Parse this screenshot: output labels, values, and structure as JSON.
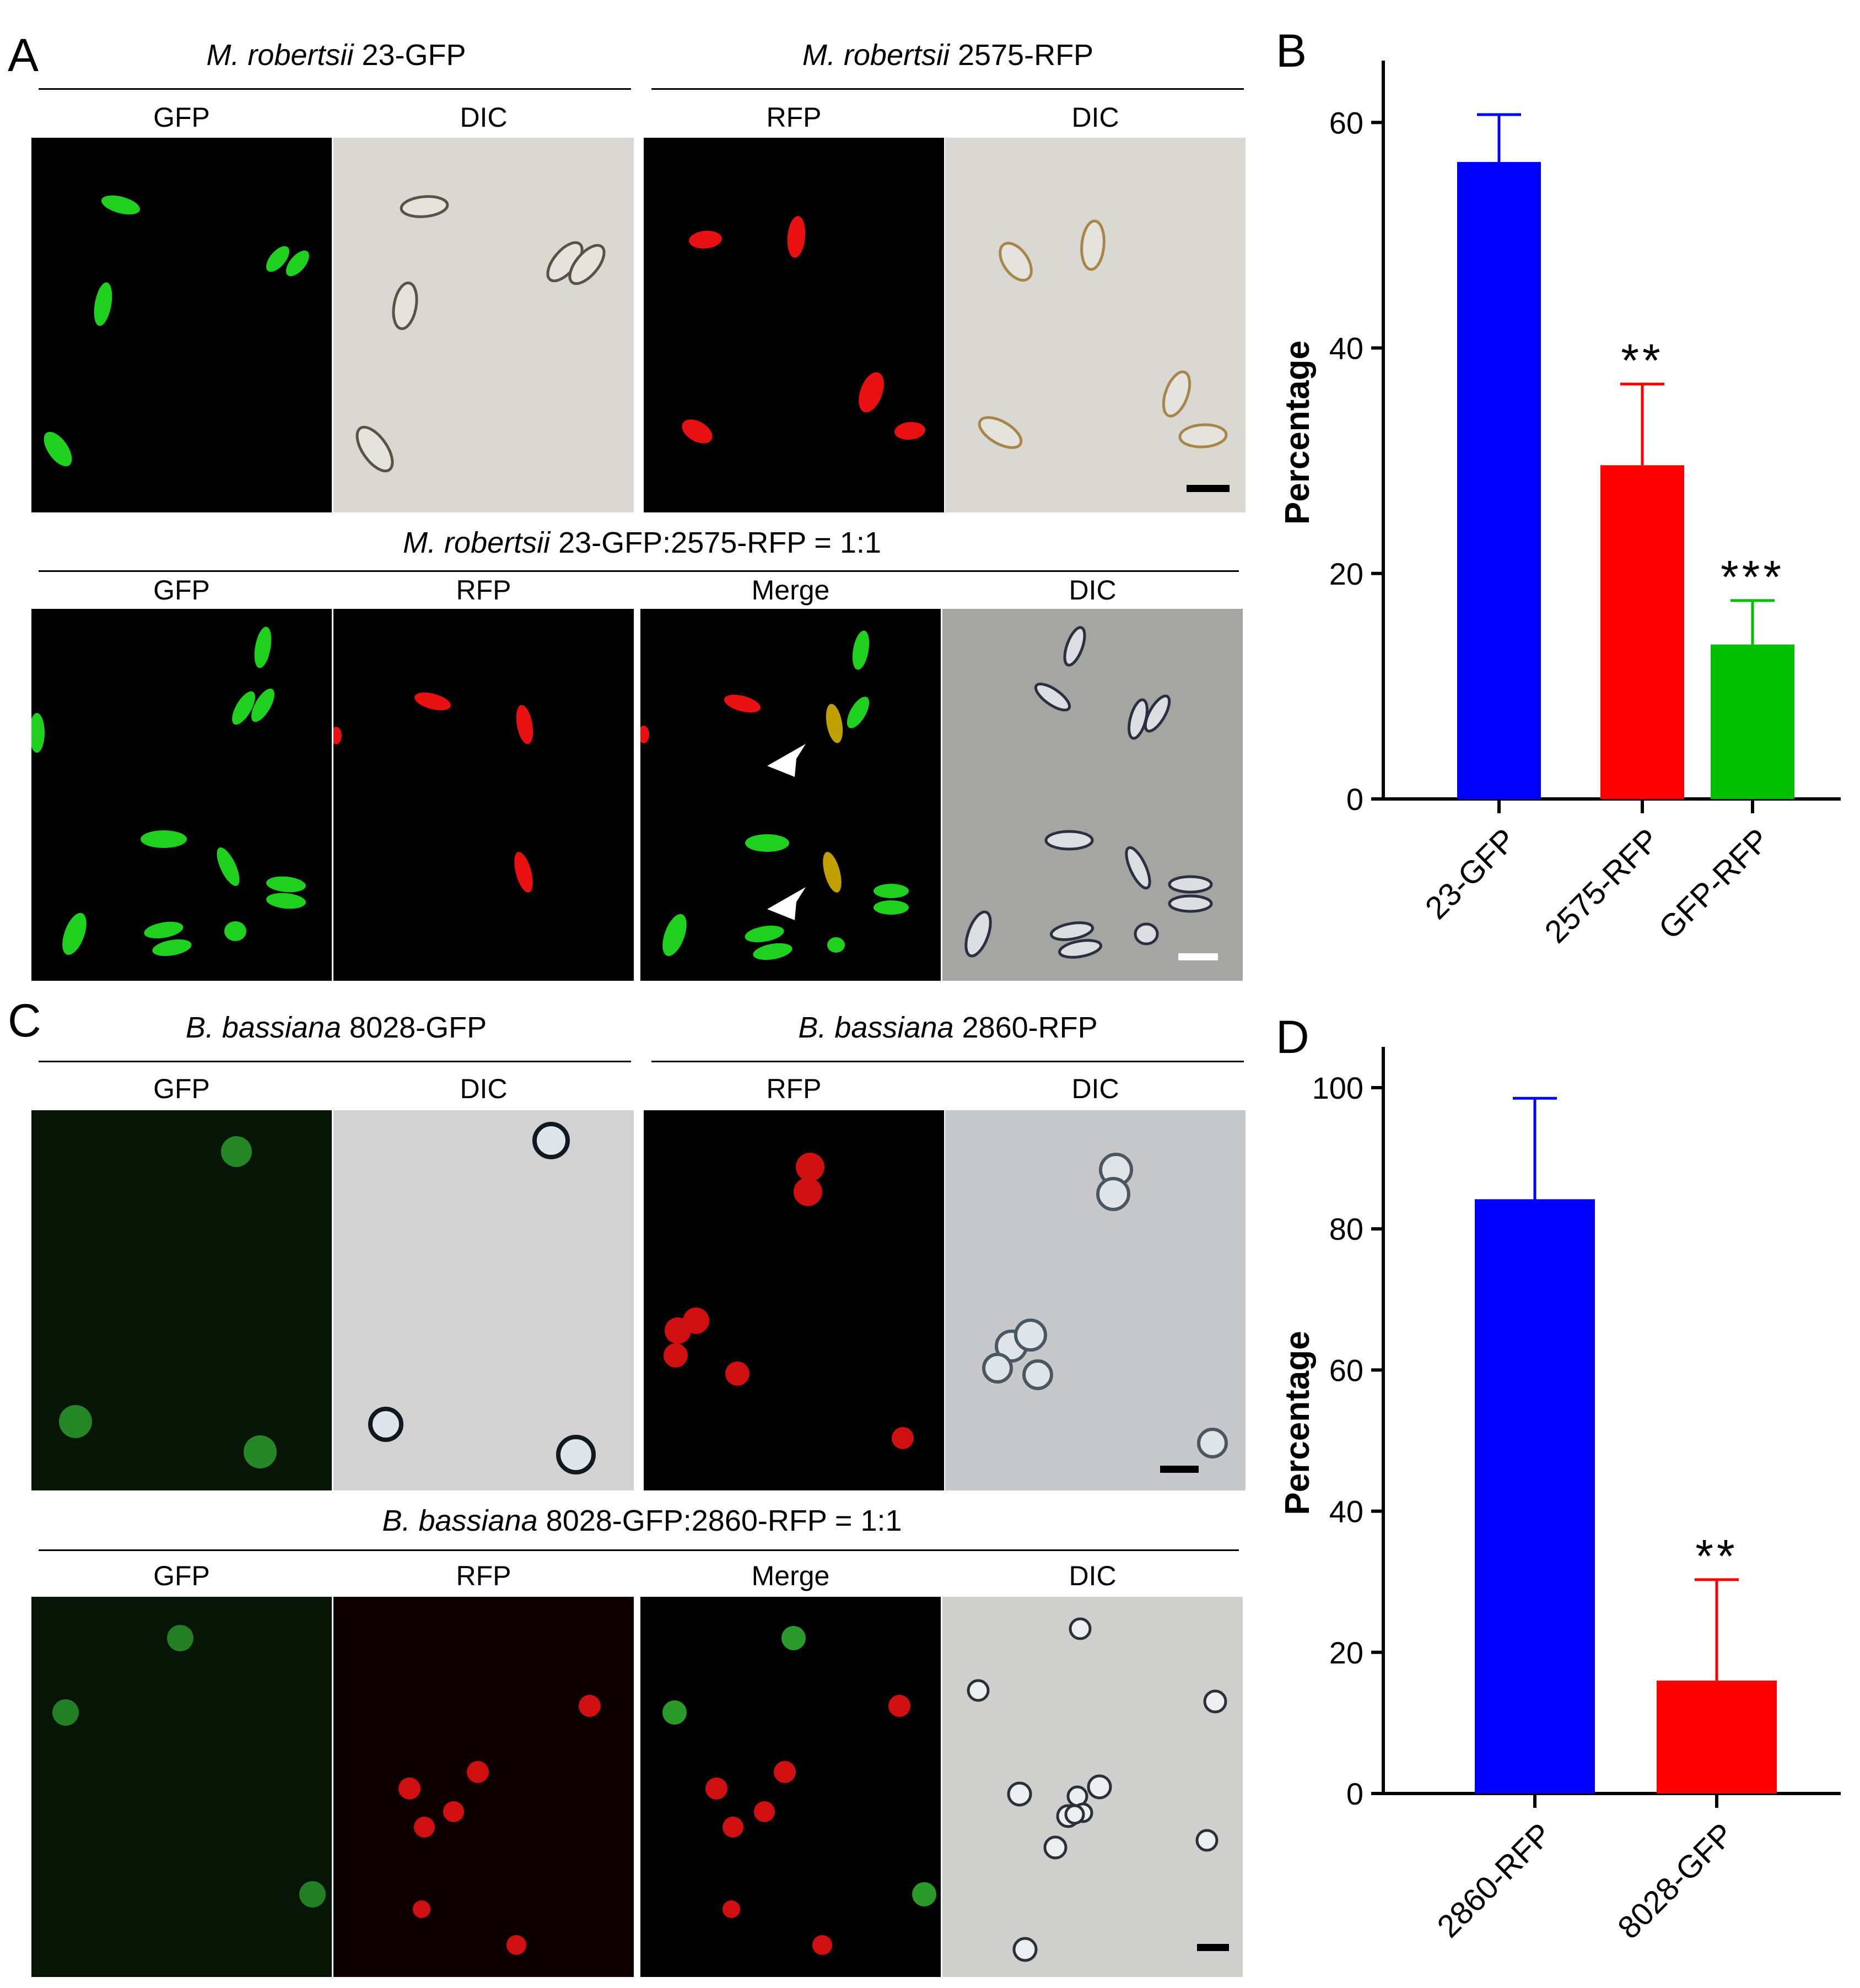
{
  "panel_letters": {
    "a": "A",
    "b": "B",
    "c": "C",
    "d": "D"
  },
  "section_a_top": {
    "left_title_italic": "M. robertsii",
    "left_title_rest": " 23-GFP",
    "right_title_italic": "M. robertsii",
    "right_title_rest": "  2575-RFP",
    "labels": [
      "GFP",
      "DIC",
      "RFP",
      "DIC"
    ]
  },
  "section_a_bottom": {
    "title_italic": "M. robertsii",
    "title_rest": "  23-GFP:2575-RFP = 1:1",
    "labels": [
      "GFP",
      "RFP",
      "Merge",
      "DIC"
    ]
  },
  "section_c_top": {
    "left_title_italic": "B. bassiana",
    "left_title_rest": " 8028-GFP",
    "right_title_italic": "B. bassiana",
    "right_title_rest": " 2860-RFP",
    "labels": [
      "GFP",
      "DIC",
      "RFP",
      "DIC"
    ]
  },
  "section_c_bottom": {
    "title_italic": "B. bassiana",
    "title_rest": " 8028-GFP:2860-RFP = 1:1",
    "labels": [
      "GFP",
      "RFP",
      "Merge",
      "DIC"
    ]
  },
  "colors": {
    "blue": "#0000ff",
    "red": "#ff0000",
    "green": "#00c000",
    "gfp": "#1fd01f",
    "rfp": "#e81010"
  },
  "chart_data": [
    {
      "type": "bar",
      "panel": "B",
      "ylabel": "Percentage",
      "ylim": [
        0,
        65
      ],
      "yticks": [
        0,
        20,
        40,
        60
      ],
      "categories": [
        "23-GFP",
        "2575-RFP",
        "GFP-RFP"
      ],
      "values": [
        56.5,
        29.6,
        13.7
      ],
      "errors": [
        4.2,
        7.2,
        3.9
      ],
      "annotations": [
        "",
        "**",
        "***"
      ],
      "bar_colors": [
        "#0000ff",
        "#ff0000",
        "#00c000"
      ]
    },
    {
      "type": "bar",
      "panel": "D",
      "ylabel": "Percentage",
      "ylim": [
        0,
        105
      ],
      "yticks": [
        0,
        20,
        40,
        60,
        80,
        100
      ],
      "categories": [
        "2860-RFP",
        "8028-GFP"
      ],
      "values": [
        84.2,
        16.0
      ],
      "errors": [
        14.3,
        14.3
      ],
      "annotations": [
        "",
        "**"
      ],
      "bar_colors": [
        "#0000ff",
        "#ff0000"
      ]
    }
  ]
}
